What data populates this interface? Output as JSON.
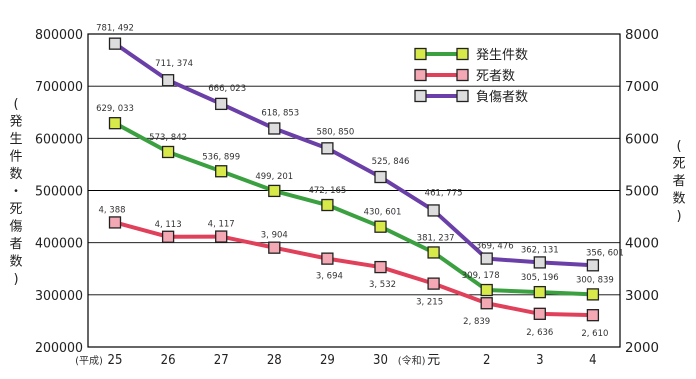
{
  "chart_data": {
    "type": "line",
    "categories": [
      "25",
      "26",
      "27",
      "28",
      "29",
      "30",
      "元",
      "2",
      "3",
      "4"
    ],
    "era_labels": {
      "heisei": "(平成)",
      "reiwa": "(令和)"
    },
    "y_left": {
      "label": "(発生件数・死傷者数)",
      "ticks": [
        "200000",
        "300000",
        "400000",
        "500000",
        "600000",
        "700000",
        "800000"
      ],
      "range": [
        200000,
        800000
      ]
    },
    "y_right": {
      "label": "(死者数)",
      "ticks": [
        "2000",
        "3000",
        "4000",
        "5000",
        "6000",
        "7000",
        "8000"
      ],
      "range": [
        2000,
        8000
      ]
    },
    "grid": true,
    "legend_position": "top-right",
    "series": [
      {
        "name": "発生件数",
        "axis": "left",
        "color": "#3aa040",
        "marker_fill": "#d8e94a",
        "values": [
          629033,
          573842,
          536899,
          499201,
          472165,
          430601,
          381237,
          309178,
          305196,
          300839
        ],
        "labels": [
          "629, 033",
          "573, 842",
          "536, 899",
          "499, 201",
          "472, 165",
          "430, 601",
          "381, 237",
          "309, 178",
          "305, 196",
          "300, 839"
        ]
      },
      {
        "name": "死者数",
        "axis": "right",
        "color": "#e0405a",
        "marker_fill": "#f4a8b4",
        "values": [
          4388,
          4113,
          4117,
          3904,
          3694,
          3532,
          3215,
          2839,
          2636,
          2610
        ],
        "labels": [
          "4, 388",
          "4, 113",
          "4, 117",
          "3, 904",
          "3, 694",
          "3, 532",
          "3, 215",
          "2, 839",
          "2, 636",
          "2, 610"
        ]
      },
      {
        "name": "負傷者数",
        "axis": "left",
        "color": "#6a3fa8",
        "marker_fill": "#dddddd",
        "values": [
          781492,
          711374,
          666023,
          618853,
          580850,
          525846,
          461775,
          369476,
          362131,
          356601
        ],
        "labels": [
          "781, 492",
          "711, 374",
          "666, 023",
          "618, 853",
          "580, 850",
          "525, 846",
          "461, 775",
          "369, 476",
          "362, 131",
          "356, 601"
        ]
      }
    ]
  }
}
